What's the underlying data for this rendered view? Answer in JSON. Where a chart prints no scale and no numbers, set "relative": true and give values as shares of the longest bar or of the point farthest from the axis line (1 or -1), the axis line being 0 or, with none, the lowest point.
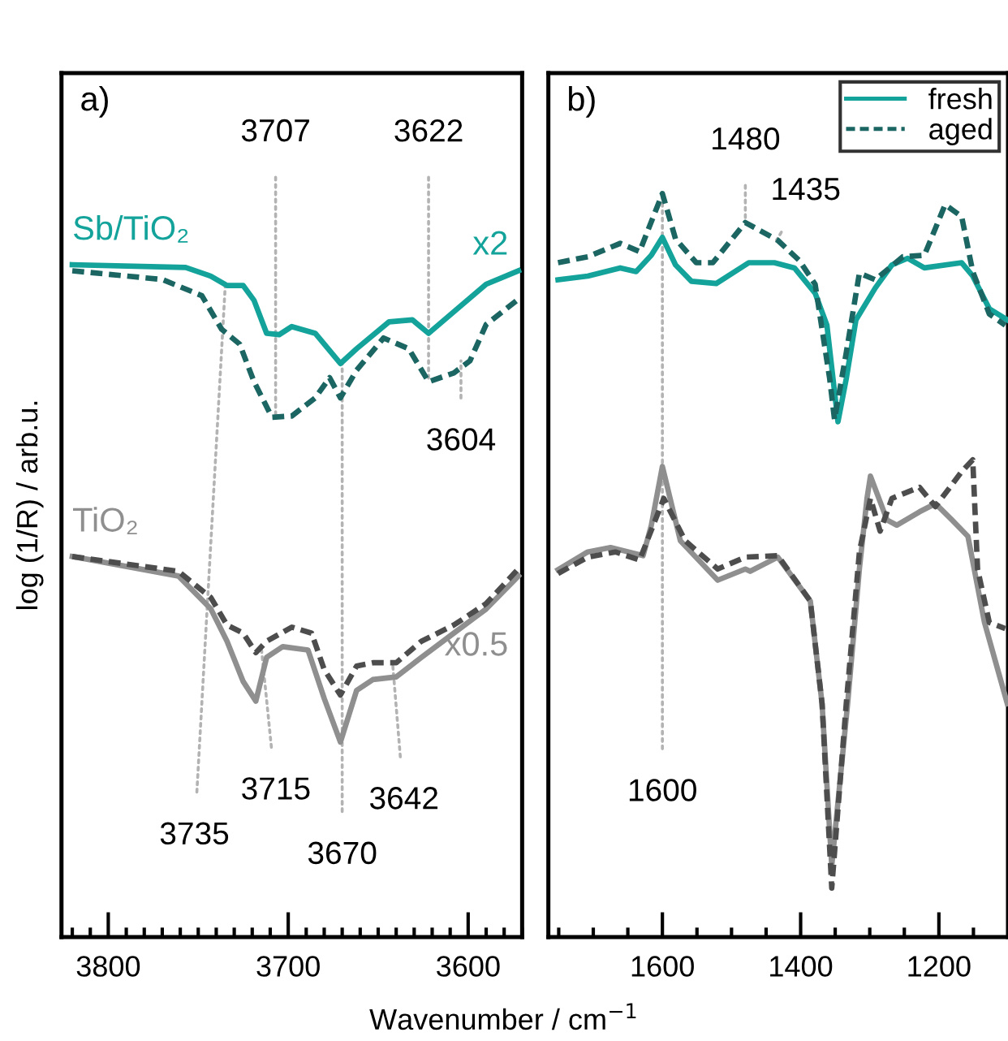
{
  "chart_data": [
    {
      "type": "line",
      "relative": true,
      "ylabel": "log (1/R) / arb.u.",
      "xlabel": "Wavenumber / cm$^{−1}$",
      "xlim": [
        3826,
        3570
      ],
      "tick_labels": "x",
      "xticks": [
        {
          "value": 3820,
          "label": null
        },
        {
          "value": 3810,
          "label": null
        },
        3800,
        {
          "value": 3790,
          "label": null
        },
        {
          "value": 3780,
          "label": null
        },
        {
          "value": 3770,
          "label": null
        },
        {
          "value": 3760,
          "label": null
        },
        {
          "value": 3750,
          "label": null
        },
        {
          "value": 3740,
          "label": null
        },
        {
          "value": 3730,
          "label": null
        },
        {
          "value": 3720,
          "label": null
        },
        {
          "value": 3710,
          "label": null
        },
        3700,
        {
          "value": 3690,
          "label": null
        },
        {
          "value": 3680,
          "label": null
        },
        {
          "value": 3670,
          "label": null
        },
        {
          "value": 3660,
          "label": null
        },
        {
          "value": 3650,
          "label": null
        },
        {
          "value": 3640,
          "label": null
        },
        {
          "value": 3630,
          "label": null
        },
        {
          "value": 3620,
          "label": null
        },
        {
          "value": 3610,
          "label": null
        },
        3600,
        {
          "value": 3590,
          "label": null
        },
        {
          "value": 3580,
          "label": null
        },
        {
          "value": 3570,
          "label": null
        }
      ],
      "annotations": [
        "a)",
        "x2",
        "x0.5",
        {
          "text": "3707",
          "x": 3707,
          "y": 0.773
        },
        {
          "text": "3622",
          "x": 3622,
          "y": 0.826
        },
        {
          "text": "3604",
          "x": 3604,
          "y": 0.857
        },
        {
          "text": "3735",
          "x": 3735,
          "y": 0.969
        },
        {
          "text": "3715",
          "x": 3715,
          "y": 0.432
        },
        {
          "text": "3670",
          "x": 3670,
          "y": 0.853
        },
        {
          "text": "3642",
          "x": 3642,
          "y": 0.408
        }
      ],
      "series": [
        {
          "name": "Sb/TiO₂",
          "color": "#13a39b",
          "line_style": "solid",
          "x": [
            3820,
            3757,
            3743,
            3734,
            3725,
            3719,
            3712,
            3705,
            3698,
            3685,
            3671,
            3662,
            3644,
            3631,
            3622,
            3608,
            3590,
            3572
          ],
          "values": [
            1.0,
            0.996,
            0.983,
            0.969,
            0.969,
            0.947,
            0.898,
            0.896,
            0.908,
            0.898,
            0.853,
            0.875,
            0.915,
            0.918,
            0.898,
            0.93,
            0.971,
            0.991
          ]
        },
        {
          "color": "#1b6663",
          "line_style": "dashed",
          "x": [
            3820,
            3770,
            3748,
            3737,
            3727,
            3719,
            3709,
            3698,
            3685,
            3677,
            3671,
            3662,
            3647,
            3633,
            3622,
            3608,
            3599,
            3590,
            3572
          ],
          "values": [
            0.991,
            0.978,
            0.954,
            0.904,
            0.882,
            0.826,
            0.773,
            0.775,
            0.802,
            0.832,
            0.802,
            0.843,
            0.891,
            0.875,
            0.826,
            0.839,
            0.857,
            0.911,
            0.949
          ]
        },
        {
          "name": "TiO₂",
          "color": "#8f8f8f",
          "line_style": "solid",
          "x": [
            3820,
            3761,
            3743,
            3734,
            3725,
            3718,
            3712,
            3703,
            3689,
            3680,
            3671,
            3662,
            3653,
            3640,
            3626,
            3608,
            3590,
            3572
          ],
          "values": [
            0.566,
            0.537,
            0.488,
            0.44,
            0.38,
            0.351,
            0.416,
            0.432,
            0.427,
            0.355,
            0.29,
            0.367,
            0.383,
            0.387,
            0.416,
            0.452,
            0.488,
            0.537
          ]
        },
        {
          "color": "#4d4d4d",
          "line_style": "dashed",
          "x": [
            3820,
            3761,
            3743,
            3734,
            3725,
            3718,
            3712,
            3698,
            3687,
            3680,
            3671,
            3662,
            3653,
            3640,
            3626,
            3608,
            3590,
            3572
          ],
          "values": [
            0.566,
            0.544,
            0.505,
            0.464,
            0.452,
            0.423,
            0.44,
            0.461,
            0.452,
            0.398,
            0.36,
            0.403,
            0.408,
            0.408,
            0.44,
            0.464,
            0.496,
            0.548
          ]
        }
      ]
    },
    {
      "type": "line",
      "relative": true,
      "xlim": [
        1765,
        1100
      ],
      "tick_labels": "x",
      "legend": "top right",
      "xticks": [
        {
          "value": 1750,
          "label": null
        },
        {
          "value": 1700,
          "label": null
        },
        {
          "value": 1650,
          "label": null
        },
        1600,
        {
          "value": 1550,
          "label": null
        },
        {
          "value": 1500,
          "label": null
        },
        {
          "value": 1450,
          "label": null
        },
        1400,
        {
          "value": 1350,
          "label": null
        },
        {
          "value": 1300,
          "label": null
        },
        {
          "value": 1250,
          "label": null
        },
        1200,
        {
          "value": 1150,
          "label": null
        }
      ],
      "annotations": [
        "b)",
        {
          "text": "1480",
          "x": 1480,
          "y": 0.961
        },
        {
          "text": "1435",
          "x": 1435,
          "y": 0.937
        },
        {
          "text": "1600",
          "x": 1600,
          "y": 1.0
        }
      ],
      "series": [
        {
          "name": "fresh",
          "color": "#13a39b",
          "line_style": "solid",
          "x": [
            1751,
            1708,
            1661,
            1638,
            1616,
            1600,
            1581,
            1558,
            1522,
            1475,
            1438,
            1409,
            1379,
            1362,
            1346,
            1334,
            1320,
            1292,
            1268,
            1245,
            1221,
            1167,
            1151,
            1127,
            1101
          ],
          "values": [
            0.884,
            0.889,
            0.9,
            0.895,
            0.917,
            0.941,
            0.904,
            0.882,
            0.879,
            0.907,
            0.907,
            0.9,
            0.866,
            0.823,
            0.693,
            0.751,
            0.83,
            0.873,
            0.904,
            0.913,
            0.9,
            0.907,
            0.889,
            0.845,
            0.83
          ]
        },
        {
          "name": "aged",
          "color": "#1b6663",
          "line_style": "dashed",
          "x": [
            1751,
            1708,
            1661,
            1633,
            1600,
            1581,
            1551,
            1527,
            1480,
            1433,
            1402,
            1379,
            1358,
            1351,
            1334,
            1315,
            1292,
            1252,
            1221,
            1191,
            1167,
            1151,
            1127,
            1104
          ],
          "values": [
            0.907,
            0.915,
            0.933,
            0.922,
            1.0,
            0.939,
            0.907,
            0.907,
            0.961,
            0.937,
            0.91,
            0.878,
            0.751,
            0.696,
            0.786,
            0.893,
            0.884,
            0.915,
            0.917,
            0.985,
            0.969,
            0.895,
            0.838,
            0.823
          ]
        },
        {
          "color": "#8f8f8f",
          "line_style": "solid",
          "x": [
            1751,
            1708,
            1675,
            1628,
            1616,
            1600,
            1574,
            1520,
            1480,
            1473,
            1433,
            1386,
            1369,
            1355,
            1332,
            1315,
            1304,
            1299,
            1275,
            1261,
            1228,
            1205,
            1181,
            1158,
            1134,
            1101
          ],
          "values": [
            0.494,
            0.518,
            0.524,
            0.513,
            0.554,
            0.633,
            0.533,
            0.48,
            0.495,
            0.492,
            0.511,
            0.452,
            0.314,
            0.096,
            0.314,
            0.495,
            0.59,
            0.62,
            0.561,
            0.554,
            0.572,
            0.583,
            0.561,
            0.539,
            0.423,
            0.314
          ]
        },
        {
          "color": "#4d4d4d",
          "line_style": "dashed",
          "x": [
            1751,
            1708,
            1668,
            1633,
            1598,
            1567,
            1520,
            1480,
            1433,
            1386,
            1369,
            1355,
            1334,
            1315,
            1299,
            1285,
            1268,
            1228,
            1205,
            1167,
            1151,
            1144,
            1127,
            1104
          ],
          "values": [
            0.489,
            0.511,
            0.518,
            0.507,
            0.59,
            0.533,
            0.495,
            0.511,
            0.513,
            0.452,
            0.314,
            0.066,
            0.314,
            0.518,
            0.59,
            0.546,
            0.59,
            0.605,
            0.579,
            0.626,
            0.642,
            0.495,
            0.423,
            0.415
          ]
        }
      ]
    }
  ]
}
